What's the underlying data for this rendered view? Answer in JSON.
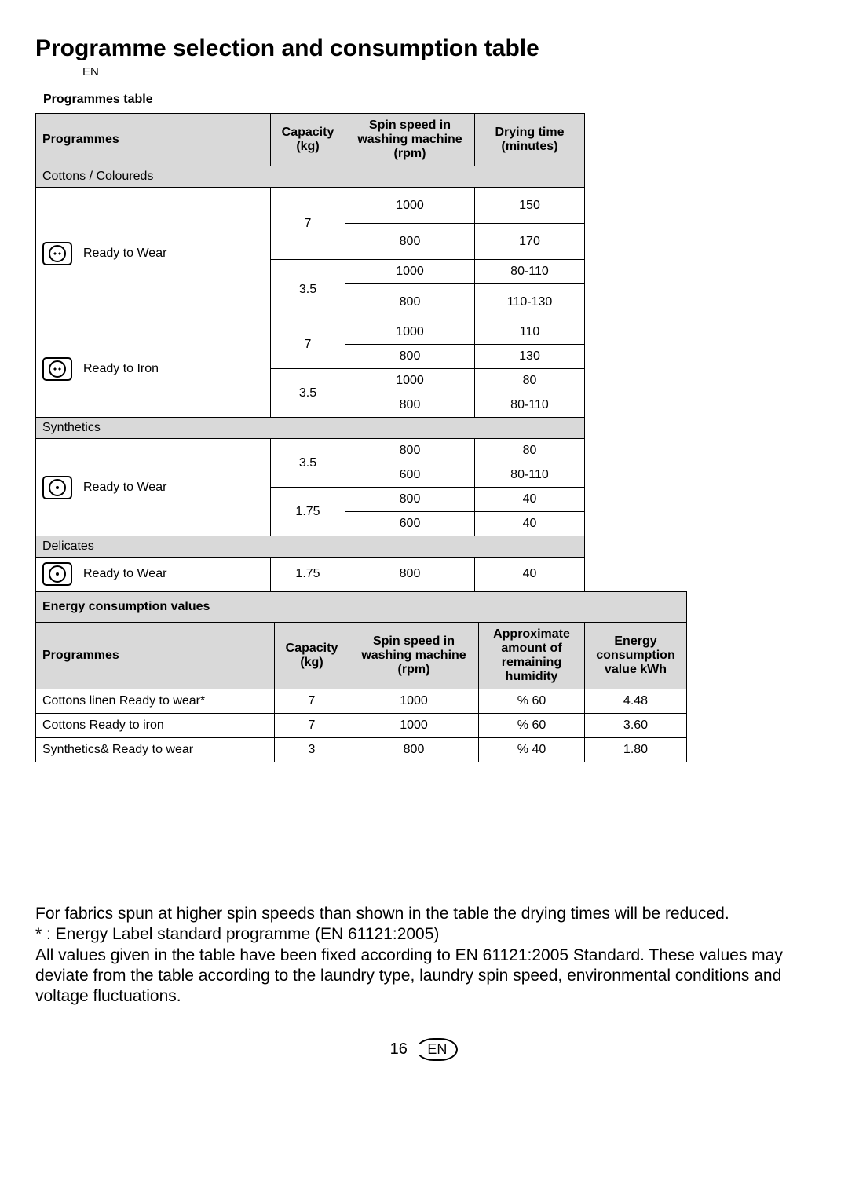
{
  "title": "Programme selection and consumption table",
  "lang_code": "EN",
  "sub1": "Programmes table",
  "table1": {
    "headers": {
      "prog": "Programmes",
      "capacity": "Capacity (kg)",
      "spin": "Spin speed in washing machine (rpm)",
      "time": "Drying time (minutes)"
    },
    "sections": [
      {
        "title": "Cottons / Coloureds",
        "rows": [
          {
            "icon": "two-dots",
            "name": "Ready to Wear",
            "blocks": [
              {
                "capacity": "7",
                "lines": [
                  {
                    "spin": "1000",
                    "time": "150",
                    "tall": true
                  },
                  {
                    "spin": "800",
                    "time": "170",
                    "tall": true
                  }
                ]
              },
              {
                "capacity": "3.5",
                "lines": [
                  {
                    "spin": "1000",
                    "time": "80-110"
                  },
                  {
                    "spin": "800",
                    "time": "110-130",
                    "tall": true
                  }
                ]
              }
            ]
          },
          {
            "icon": "two-dots",
            "name": "Ready to Iron",
            "blocks": [
              {
                "capacity": "7",
                "lines": [
                  {
                    "spin": "1000",
                    "time": "110"
                  },
                  {
                    "spin": "800",
                    "time": "130"
                  }
                ]
              },
              {
                "capacity": "3.5",
                "lines": [
                  {
                    "spin": "1000",
                    "time": "80"
                  },
                  {
                    "spin": "800",
                    "time": "80-110"
                  }
                ]
              }
            ]
          }
        ]
      },
      {
        "title": "Synthetics",
        "rows": [
          {
            "icon": "one-dot",
            "name": "Ready to Wear",
            "blocks": [
              {
                "capacity": "3.5",
                "lines": [
                  {
                    "spin": "800",
                    "time": "80"
                  },
                  {
                    "spin": "600",
                    "time": "80-110"
                  }
                ]
              },
              {
                "capacity": "1.75",
                "lines": [
                  {
                    "spin": "800",
                    "time": "40"
                  },
                  {
                    "spin": "600",
                    "time": "40"
                  }
                ]
              }
            ]
          }
        ]
      },
      {
        "title": "Delicates",
        "rows": [
          {
            "icon": "one-dot",
            "name": "Ready to Wear",
            "blocks": [
              {
                "capacity": "1.75",
                "lines": [
                  {
                    "spin": "800",
                    "time": "40"
                  }
                ]
              }
            ]
          }
        ]
      }
    ]
  },
  "energy_header": "Energy consumption values",
  "table2": {
    "headers": {
      "prog": "Programmes",
      "capacity": "Capacity (kg)",
      "spin": "Spin speed in washing machine (rpm)",
      "humidity": "Approximate amount of remaining humidity",
      "energy": "Energy consumption value kWh"
    },
    "rows": [
      {
        "prog": "Cottons linen Ready to wear*",
        "cap": "7",
        "spin": "1000",
        "humid": "% 60",
        "energy": "4.48"
      },
      {
        "prog": "Cottons Ready to iron",
        "cap": "7",
        "spin": "1000",
        "humid": "% 60",
        "energy": "3.60"
      },
      {
        "prog": "Synthetics& Ready to wear",
        "cap": "3",
        "spin": "800",
        "humid": "% 40",
        "energy": "1.80"
      }
    ]
  },
  "notes": [
    "For fabrics spun at higher spin speeds than shown in the table the drying times will be reduced.",
    "* : Energy Label standard programme (EN 61121:2005)",
    "All values given in the table have been fixed according to EN 61121:2005 Standard. These values may deviate from the table according to the laundry type, laundry spin speed, environmental conditions and voltage fluctuations."
  ],
  "page_number": "16",
  "page_badge": "EN"
}
